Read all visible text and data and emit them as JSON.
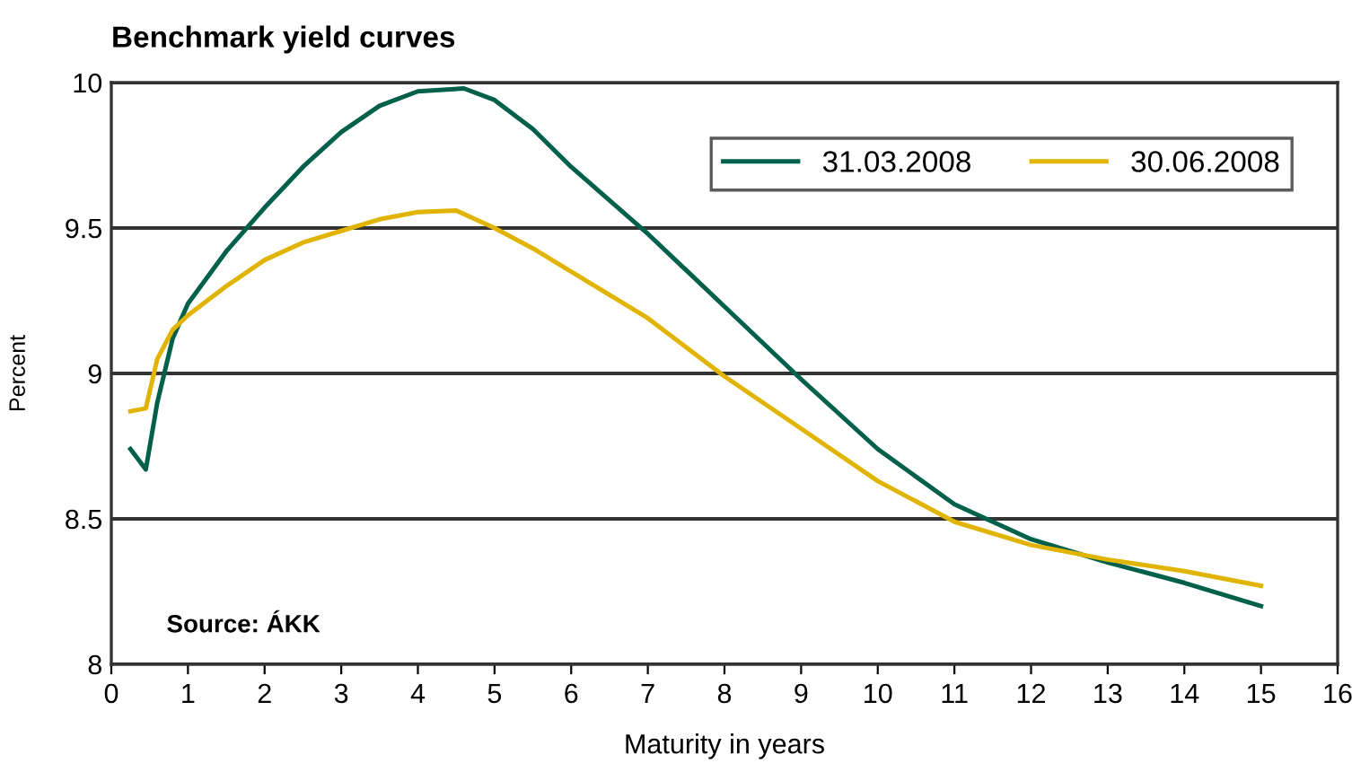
{
  "chart_data": {
    "type": "line",
    "title": "Benchmark yield curves",
    "xlabel": "Maturity in years",
    "ylabel": "Percent",
    "annotations": [
      "Source: ÁKK"
    ],
    "xlim": [
      0,
      16
    ],
    "xticks": [
      0,
      1,
      2,
      3,
      4,
      5,
      6,
      7,
      8,
      9,
      10,
      11,
      12,
      13,
      14,
      15,
      16
    ],
    "ylim": [
      8,
      10
    ],
    "yticks": [
      8,
      {
        "value": 8.5,
        "label": "8.5"
      },
      9,
      {
        "value": 9.5,
        "label": "9.5"
      },
      10
    ],
    "grid": "y",
    "legend": "top right",
    "marker": "none",
    "line_style": "solid",
    "series": [
      {
        "name": "31.03.2008",
        "color": "#00604a",
        "x": [
          0.25,
          0.45,
          0.6,
          0.8,
          1,
          1.5,
          2,
          2.5,
          3,
          3.5,
          4,
          4.6,
          5,
          5.5,
          6,
          7,
          8,
          9,
          10,
          11,
          12,
          13,
          14,
          15
        ],
        "values": [
          8.74,
          8.67,
          8.9,
          9.12,
          9.24,
          9.42,
          9.57,
          9.71,
          9.83,
          9.92,
          9.97,
          9.98,
          9.94,
          9.84,
          9.71,
          9.48,
          9.23,
          8.98,
          8.74,
          8.55,
          8.43,
          8.35,
          8.28,
          8.2
        ]
      },
      {
        "name": "30.06.2008",
        "color": "#e0b400",
        "x": [
          0.25,
          0.45,
          0.6,
          0.8,
          1,
          1.5,
          2,
          2.5,
          3,
          3.5,
          4,
          4.5,
          5,
          5.5,
          6,
          7,
          8,
          9,
          10,
          11,
          12,
          13,
          14,
          15
        ],
        "values": [
          8.87,
          8.88,
          9.05,
          9.15,
          9.2,
          9.3,
          9.39,
          9.45,
          9.49,
          9.53,
          9.555,
          9.56,
          9.5,
          9.43,
          9.35,
          9.19,
          8.99,
          8.81,
          8.63,
          8.49,
          8.41,
          8.36,
          8.32,
          8.27
        ]
      }
    ]
  }
}
